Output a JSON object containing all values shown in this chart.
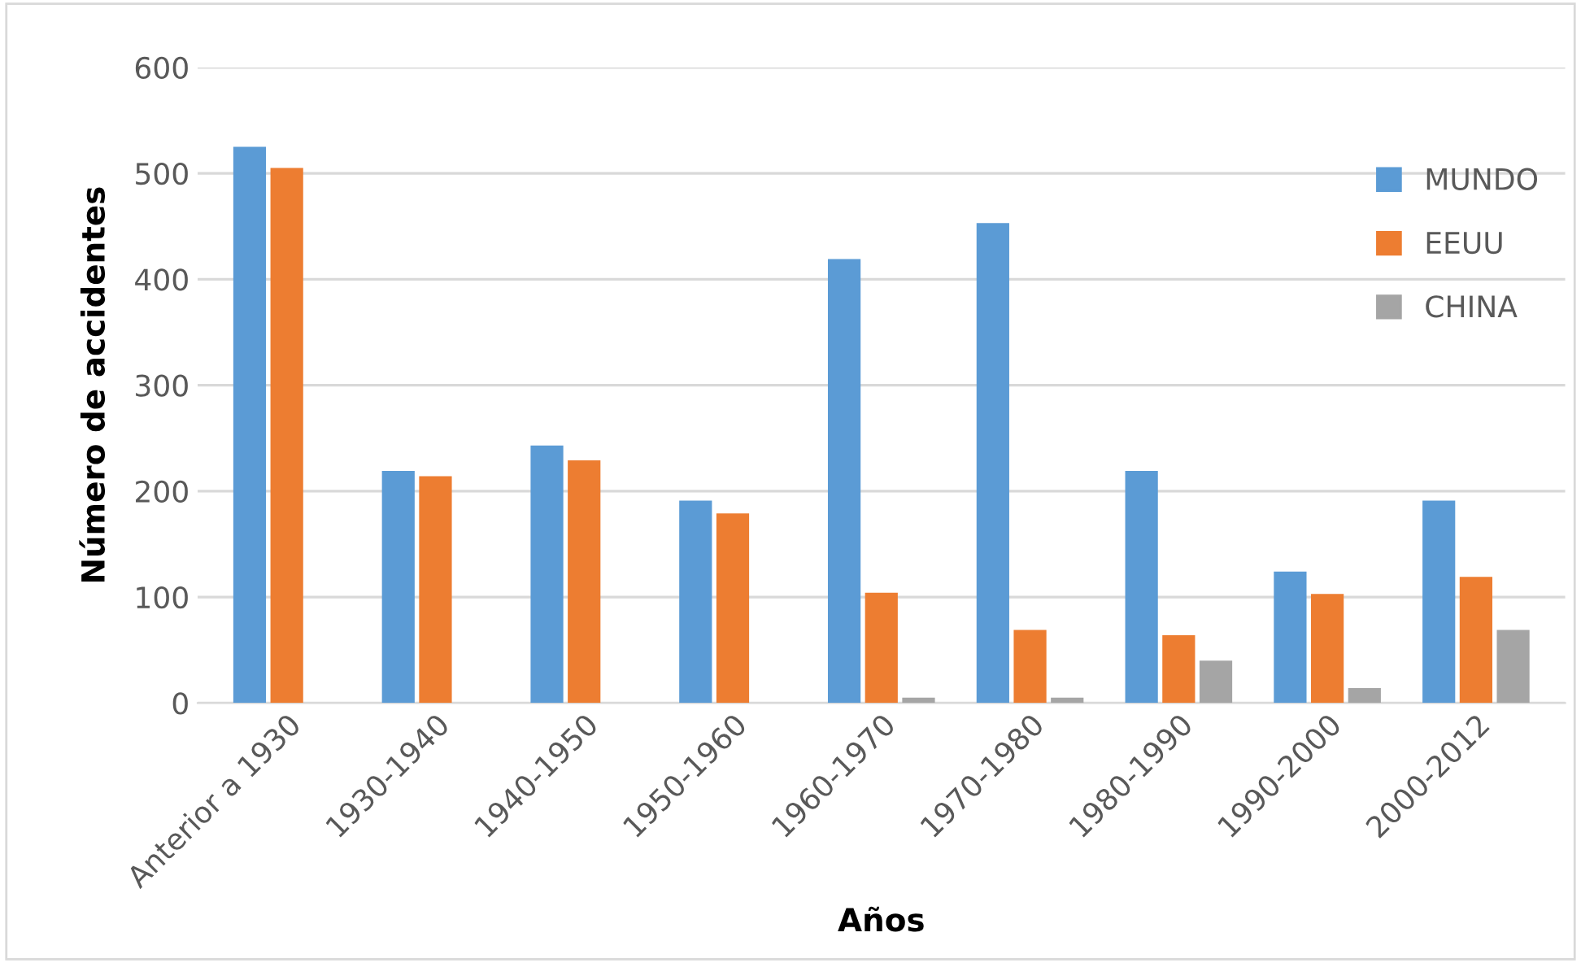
{
  "chart_data": {
    "type": "bar",
    "xlabel": "Años",
    "ylabel": "Número de accidentes",
    "categories": [
      "Anterior a 1930",
      "1930-1940",
      "1940-1950",
      "1950-1960",
      "1960-1970",
      "1970-1980",
      "1980-1990",
      "1990-2000",
      "2000-2012"
    ],
    "series": [
      {
        "name": "MUNDO",
        "color": "#5b9bd5",
        "values": [
          525,
          219,
          243,
          191,
          419,
          453,
          219,
          124,
          191
        ]
      },
      {
        "name": "EEUU",
        "color": "#ed7d31",
        "values": [
          505,
          214,
          229,
          179,
          104,
          69,
          64,
          103,
          119
        ]
      },
      {
        "name": "CHINA",
        "color": "#a5a5a5",
        "values": [
          null,
          null,
          null,
          null,
          5,
          5,
          40,
          14,
          69
        ]
      }
    ],
    "ylim": [
      0,
      600
    ],
    "yticks": [
      0,
      100,
      200,
      300,
      400,
      500,
      600
    ],
    "grid": "y",
    "legend": "right"
  }
}
